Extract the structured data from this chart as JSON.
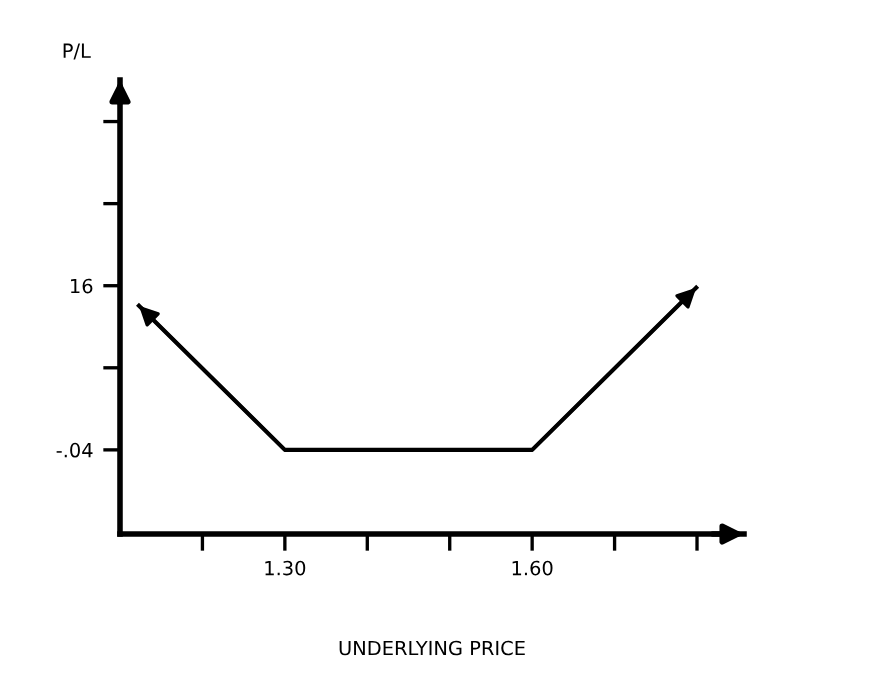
{
  "chart_data": {
    "type": "line",
    "xlabel": "UNDERLYING PRICE",
    "ylabel": "P/L",
    "x": [
      1.123,
      1.3,
      1.6,
      1.799
    ],
    "series": [
      {
        "color": "#000000",
        "values": [
          14.04,
          -0.04,
          -0.04,
          15.8
        ]
      }
    ],
    "xlim": [
      1.1,
      1.857
    ],
    "ylim": [
      -8.26,
      36.1
    ],
    "xticks": [
      {
        "value": 1.2,
        "label": null
      },
      {
        "value": 1.3,
        "label": "1.30"
      },
      {
        "value": 1.4,
        "label": null
      },
      {
        "value": 1.5,
        "label": null
      },
      {
        "value": 1.6,
        "label": "1.60"
      },
      {
        "value": 1.7,
        "label": null
      },
      {
        "value": 1.8,
        "label": null
      }
    ],
    "yticks": [
      {
        "value": -0.04,
        "label": "-.04"
      },
      {
        "value": 7.98,
        "label": null
      },
      {
        "value": 16,
        "label": "16"
      },
      {
        "value": 24.02,
        "label": null
      },
      {
        "value": 32.04,
        "label": null
      }
    ],
    "grid": false,
    "marker": "none",
    "line_style": "solid"
  }
}
